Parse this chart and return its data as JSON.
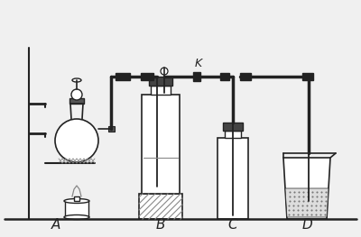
{
  "bg_color": "#f0f0f0",
  "line_color": "#222222",
  "dark": "#111111",
  "gray": "#888888",
  "label_A": "A",
  "label_B": "B",
  "label_C": "C",
  "label_D": "D",
  "label_K": "K",
  "label_fontsize": 11,
  "figsize": [
    4.0,
    2.63
  ],
  "dpi": 100
}
